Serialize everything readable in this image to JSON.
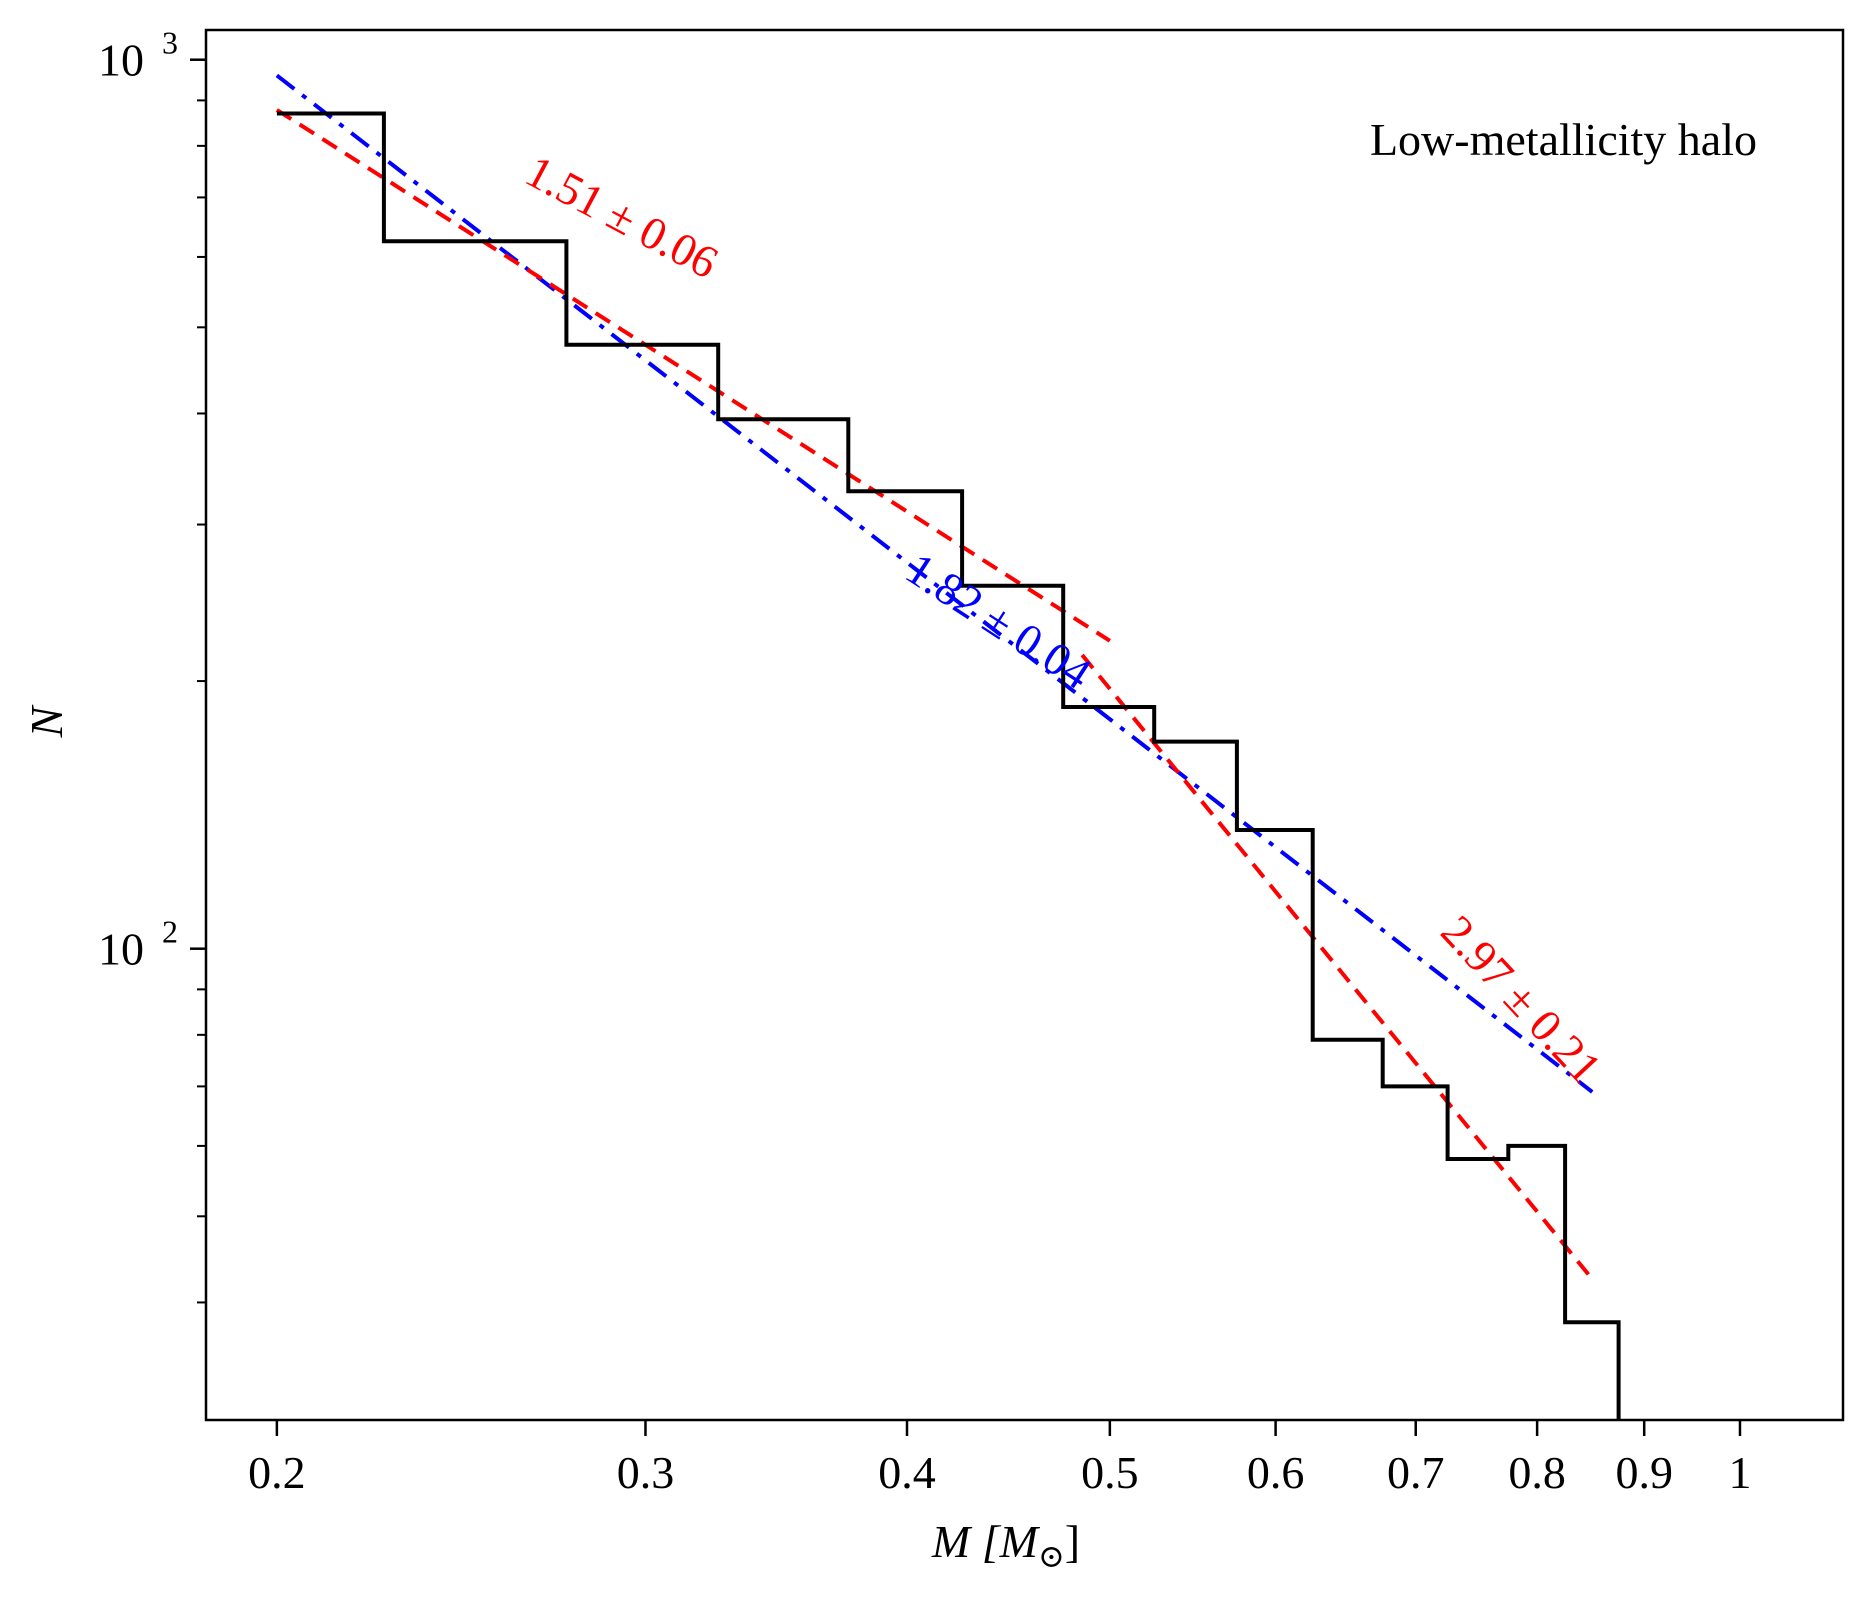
{
  "chart_data": {
    "type": "line",
    "title": "",
    "annotation_text": "Low-metallicity halo",
    "xlabel": "M [M⊙]",
    "ylabel": "N",
    "xscale": "log",
    "yscale": "log",
    "xlim": [
      0.185,
      1.12
    ],
    "ylim": [
      29.5,
      1080
    ],
    "x_ticks": [
      {
        "value": 0.2,
        "label": "0.2"
      },
      {
        "value": 0.3,
        "label": "0.3"
      },
      {
        "value": 0.4,
        "label": "0.4"
      },
      {
        "value": 0.5,
        "label": "0.5"
      },
      {
        "value": 0.6,
        "label": "0.6"
      },
      {
        "value": 0.7,
        "label": "0.7"
      },
      {
        "value": 0.8,
        "label": "0.8"
      },
      {
        "value": 0.9,
        "label": "0.9"
      },
      {
        "value": 1.0,
        "label": "1"
      }
    ],
    "y_ticks": [
      {
        "value": 100,
        "label_base": "10",
        "label_exp": "2"
      },
      {
        "value": 1000,
        "label_base": "10",
        "label_exp": "3"
      }
    ],
    "y_minor_ticks": [
      40,
      50,
      60,
      70,
      80,
      90,
      200,
      300,
      400,
      500,
      600,
      700,
      800,
      900
    ],
    "grid": false,
    "histogram": {
      "name": "",
      "color": "#000000",
      "bin_edges": [
        0.2,
        0.225,
        0.275,
        0.325,
        0.375,
        0.425,
        0.475,
        0.525,
        0.575,
        0.625,
        0.675,
        0.725,
        0.775,
        0.825,
        0.875
      ],
      "counts": [
        870,
        625,
        478,
        394,
        327,
        256,
        187,
        171,
        136,
        79,
        70,
        58,
        60,
        38
      ],
      "final_drop_to": 29.5
    },
    "series": [
      {
        "style": "dashdot",
        "color": "#0000ff",
        "x": [
          0.2,
          0.85
        ],
        "y": [
          960,
          69
        ]
      },
      {
        "style": "dashed",
        "color": "#ff0000",
        "x": [
          0.2,
          0.5
        ],
        "y": [
          878,
          222
        ]
      },
      {
        "style": "dashed",
        "color": "#ff0000",
        "x": [
          0.485,
          0.85
        ],
        "y": [
          214,
          42.5
        ]
      }
    ],
    "fit_labels": [
      {
        "text": "1.51 ± 0.06",
        "color": "#ff0000",
        "x": 0.262,
        "y": 730,
        "angle": 28
      },
      {
        "text": "1.82 ± 0.04",
        "color": "#0000ff",
        "x": 0.398,
        "y": 262,
        "angle": 33
      },
      {
        "text": "2.97 ± 0.21",
        "color": "#ff0000",
        "x": 0.718,
        "y": 104,
        "angle": 47
      }
    ]
  }
}
